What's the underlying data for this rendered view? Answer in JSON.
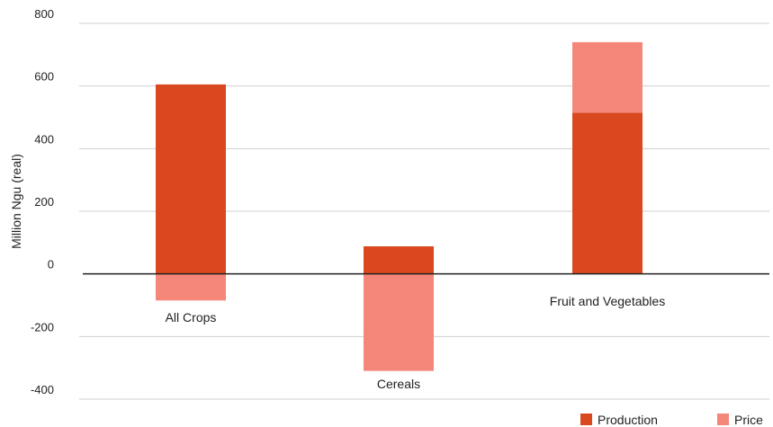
{
  "chart_data": {
    "type": "bar",
    "stacked": true,
    "categories": [
      "All Crops",
      "Cereals",
      "Fruit and Vegetables"
    ],
    "series": [
      {
        "name": "Production",
        "color": "#d9481f",
        "values": [
          605,
          88,
          515
        ]
      },
      {
        "name": "Price",
        "color": "#f4877a",
        "values": [
          -85,
          -310,
          225
        ]
      }
    ],
    "title": "",
    "xlabel": "",
    "ylabel": "Million Ngu (real)",
    "ylim": [
      -400,
      800
    ],
    "yticks": [
      800,
      600,
      400,
      200,
      0,
      -200,
      -400
    ],
    "grid": true,
    "legend_position": "bottom-right"
  }
}
